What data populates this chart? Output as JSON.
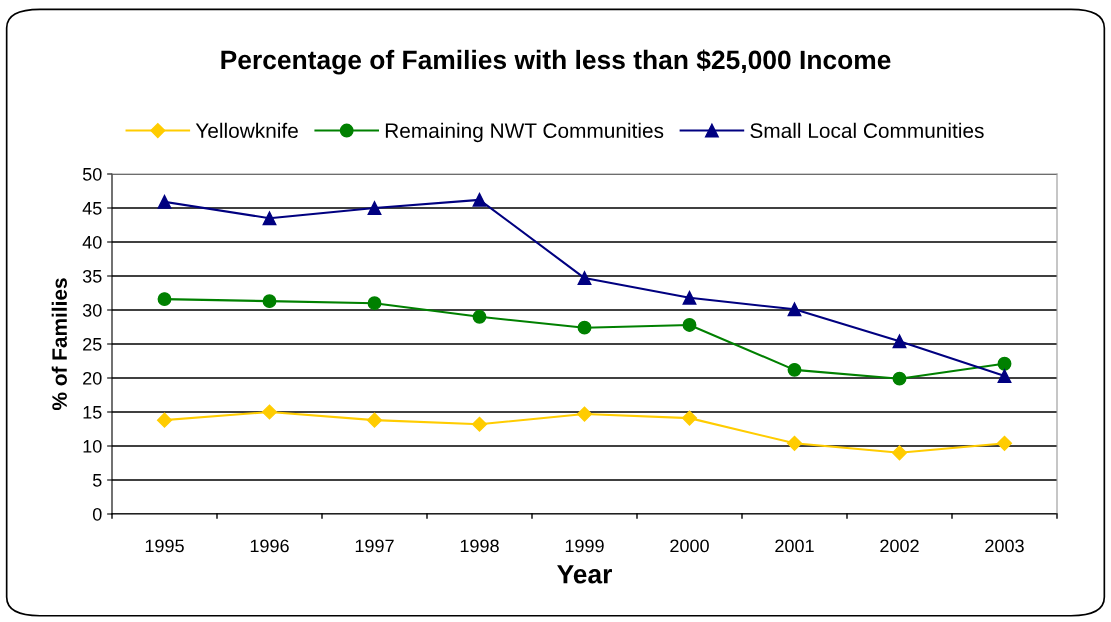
{
  "chart_data": {
    "type": "line",
    "title": "Percentage of Families with less than $25,000 Income",
    "xlabel": "Year",
    "ylabel": "% of Families",
    "categories": [
      "1995",
      "1996",
      "1997",
      "1998",
      "1999",
      "2000",
      "2001",
      "2002",
      "2003"
    ],
    "series": [
      {
        "name": "Yellowknife",
        "color": "#ffcc00",
        "marker": "diamond",
        "values": [
          13.8,
          15.0,
          13.8,
          13.2,
          14.7,
          14.1,
          10.4,
          9.0,
          10.4
        ]
      },
      {
        "name": "Remaining NWT Communities",
        "color": "#008000",
        "marker": "circle",
        "values": [
          31.6,
          31.3,
          31.0,
          29.0,
          27.4,
          27.8,
          21.2,
          19.9,
          22.1
        ]
      },
      {
        "name": "Small Local Communities",
        "color": "#000080",
        "marker": "triangle",
        "values": [
          45.9,
          43.5,
          45.0,
          46.2,
          34.7,
          31.8,
          30.1,
          25.4,
          20.3
        ]
      }
    ],
    "ylim": [
      0,
      50
    ],
    "yticks": [
      0,
      5,
      10,
      15,
      20,
      25,
      30,
      35,
      40,
      45,
      50
    ],
    "grid": "y",
    "legend": "top",
    "line_style": "solid"
  }
}
